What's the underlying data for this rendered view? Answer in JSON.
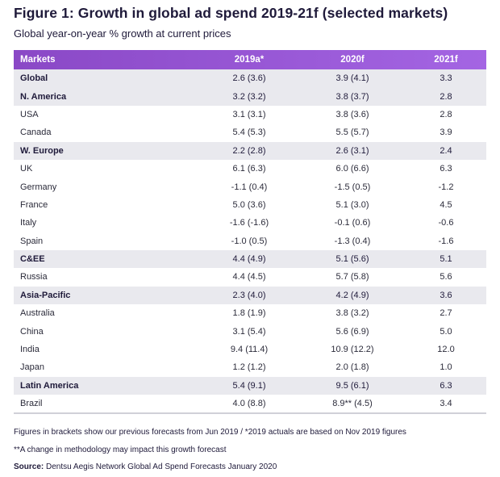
{
  "title": "Figure 1: Growth in global ad spend 2019-21f (selected markets)",
  "subtitle": "Global year-on-year % growth at current prices",
  "table": {
    "headers": [
      "Markets",
      "2019a*",
      "2020f",
      "2021f"
    ],
    "rows": [
      {
        "market": "Global",
        "y2019": "2.6 (3.6)",
        "y2020": "3.9 (4.1)",
        "y2021": "3.3",
        "region": true
      },
      {
        "market": "N. America",
        "y2019": "3.2 (3.2)",
        "y2020": "3.8 (3.7)",
        "y2021": "2.8",
        "region": true
      },
      {
        "market": "USA",
        "y2019": "3.1 (3.1)",
        "y2020": "3.8 (3.6)",
        "y2021": "2.8",
        "region": false
      },
      {
        "market": "Canada",
        "y2019": "5.4 (5.3)",
        "y2020": "5.5 (5.7)",
        "y2021": "3.9",
        "region": false
      },
      {
        "market": "W. Europe",
        "y2019": "2.2 (2.8)",
        "y2020": "2.6 (3.1)",
        "y2021": "2.4",
        "region": true
      },
      {
        "market": "UK",
        "y2019": "6.1 (6.3)",
        "y2020": "6.0 (6.6)",
        "y2021": "6.3",
        "region": false
      },
      {
        "market": "Germany",
        "y2019": "-1.1 (0.4)",
        "y2020": "-1.5 (0.5)",
        "y2021": "-1.2",
        "region": false
      },
      {
        "market": "France",
        "y2019": "5.0 (3.6)",
        "y2020": "5.1 (3.0)",
        "y2021": "4.5",
        "region": false
      },
      {
        "market": "Italy",
        "y2019": "-1.6 (-1.6)",
        "y2020": "-0.1 (0.6)",
        "y2021": "-0.6",
        "region": false
      },
      {
        "market": "Spain",
        "y2019": "-1.0 (0.5)",
        "y2020": "-1.3 (0.4)",
        "y2021": "-1.6",
        "region": false
      },
      {
        "market": "C&EE",
        "y2019": "4.4 (4.9)",
        "y2020": "5.1 (5.6)",
        "y2021": "5.1",
        "region": true
      },
      {
        "market": "Russia",
        "y2019": "4.4 (4.5)",
        "y2020": "5.7 (5.8)",
        "y2021": "5.6",
        "region": false
      },
      {
        "market": "Asia-Pacific",
        "y2019": "2.3 (4.0)",
        "y2020": "4.2 (4.9)",
        "y2021": "3.6",
        "region": true
      },
      {
        "market": "Australia",
        "y2019": "1.8 (1.9)",
        "y2020": "3.8 (3.2)",
        "y2021": "2.7",
        "region": false
      },
      {
        "market": "China",
        "y2019": "3.1 (5.4)",
        "y2020": "5.6 (6.9)",
        "y2021": "5.0",
        "region": false
      },
      {
        "market": "India",
        "y2019": "9.4 (11.4)",
        "y2020": "10.9 (12.2)",
        "y2021": "12.0",
        "region": false
      },
      {
        "market": "Japan",
        "y2019": "1.2 (1.2)",
        "y2020": "2.0 (1.8)",
        "y2021": "1.0",
        "region": false
      },
      {
        "market": "Latin America",
        "y2019": "5.4 (9.1)",
        "y2020": "9.5 (6.1)",
        "y2021": "6.3",
        "region": true
      },
      {
        "market": "Brazil",
        "y2019": "4.0 (8.8)",
        "y2020": "8.9** (4.5)",
        "y2021": "3.4",
        "region": false
      }
    ]
  },
  "notes": {
    "brackets": "Figures in brackets show our previous forecasts from Jun 2019 / *2019 actuals are based on Nov 2019 figures",
    "methodology": "**A change in methodology may impact this growth forecast",
    "source_label": "Source:",
    "source_text": " Dentsu Aegis Network Global Ad Spend Forecasts January 2020"
  },
  "colors": {
    "header_start": "#8a48c6",
    "header_end": "#a465e3",
    "region_row": "#e9e9ee",
    "title_text": "#1f1a3a"
  }
}
